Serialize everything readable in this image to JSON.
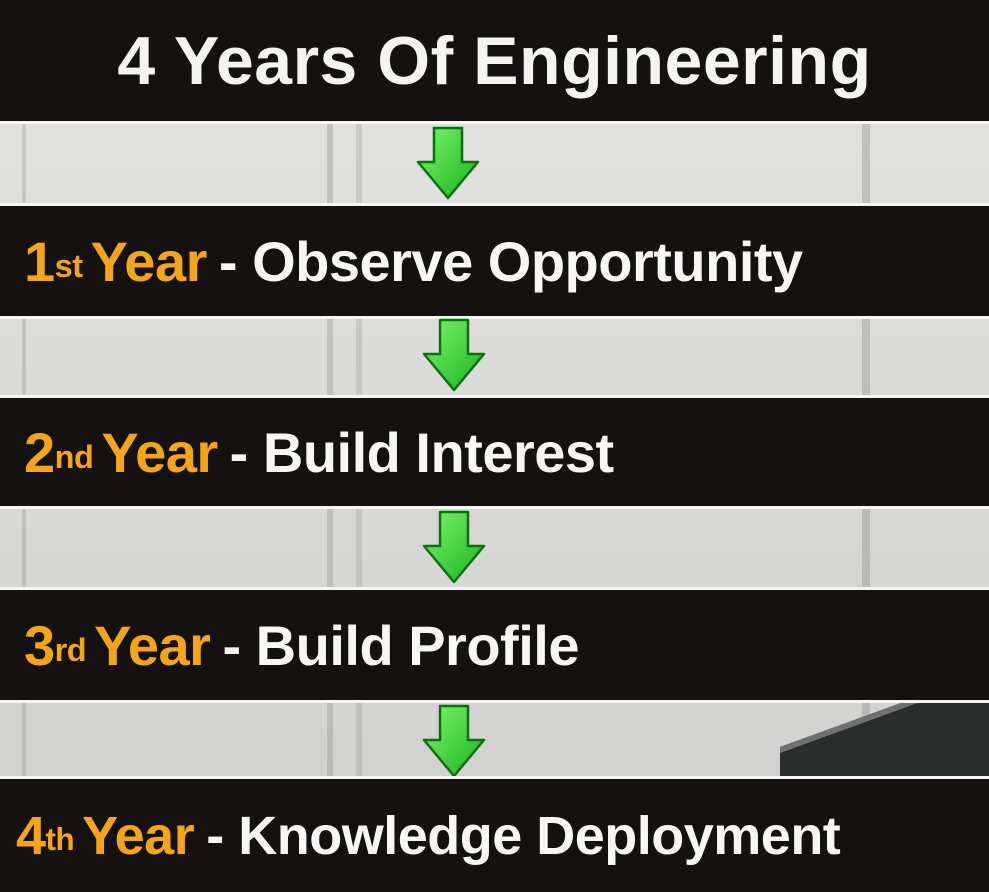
{
  "title": "4 Years Of Engineering",
  "years": [
    {
      "num": "1",
      "suffix": "st",
      "year_word": "Year",
      "text": "- Observe Opportunity"
    },
    {
      "num": "2",
      "suffix": "nd",
      "year_word": "Year",
      "text": "- Build Interest"
    },
    {
      "num": "3",
      "suffix": "rd",
      "year_word": "Year",
      "text": "- Build Profile"
    },
    {
      "num": "4",
      "suffix": "th",
      "year_word": "Year",
      "text": "- Knowledge Deployment"
    }
  ],
  "colors": {
    "bar": "#141110",
    "year_accent": "#f5a51c",
    "text": "#f7f7f5",
    "arrow": "#3be23b"
  },
  "icons": [
    "arrow-down-icon"
  ]
}
